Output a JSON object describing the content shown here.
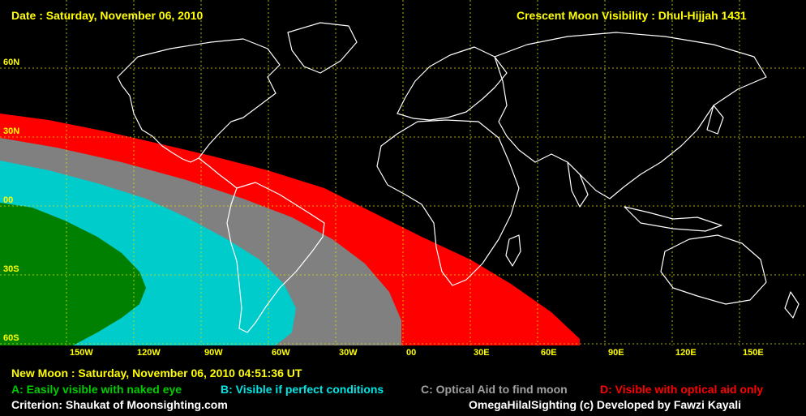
{
  "header": {
    "date": "Date : Saturday, November 06, 2010",
    "title": "Crescent Moon Visibility : Dhul-Hijjah  1431"
  },
  "map": {
    "lat_labels": [
      "60N",
      "30N",
      "00",
      "30S",
      "60S"
    ],
    "lon_labels": [
      "150W",
      "120W",
      "90W",
      "60W",
      "30W",
      "00",
      "30E",
      "60E",
      "90E",
      "120E",
      "150E"
    ],
    "colors": {
      "zone_a": "#008000",
      "zone_b": "#00cccc",
      "zone_c": "#808080",
      "zone_d": "#ff0000",
      "grid": "#e0e000",
      "coast": "#ffffff"
    }
  },
  "footer": {
    "new_moon": "New Moon : Saturday, November 06, 2010  04:51:36  UT",
    "legend_a": "A: Easily visible with naked eye",
    "legend_b": "B: Visible if perfect conditions",
    "legend_c": "C: Optical Aid to find moon",
    "legend_d": "D: Visible with optical aid only",
    "criterion": "Criterion: Shaukat of Moonsighting.com",
    "credit": "OmegaHilalSighting  (c)  Developed by Fawzi Kayali"
  }
}
